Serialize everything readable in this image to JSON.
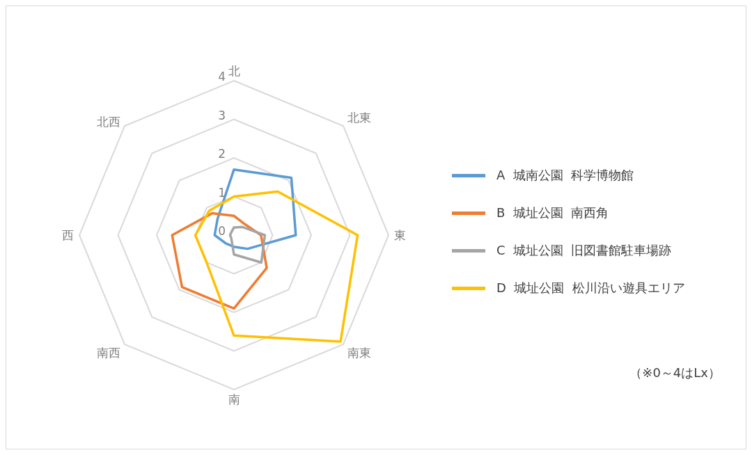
{
  "chart_data": {
    "type": "radar",
    "categories": [
      "北",
      "北東",
      "東",
      "南東",
      "南",
      "南西",
      "西",
      "北西"
    ],
    "series": [
      {
        "name": "A  城南公園  科学博物館",
        "color": "#5b9bd5",
        "values": [
          1.7,
          2.1,
          1.6,
          0.5,
          0.3,
          0.3,
          0.5,
          0.6
        ]
      },
      {
        "name": "B  城址公園  南西角",
        "color": "#ed7d31",
        "values": [
          0.5,
          0.4,
          0.7,
          1.2,
          1.9,
          1.9,
          1.6,
          0.8
        ]
      },
      {
        "name": "C  城址公園  旧図書館駐車場跡",
        "color": "#a5a5a5",
        "values": [
          0.2,
          0.3,
          0.8,
          1.0,
          0.5,
          0.1,
          0.1,
          0.1
        ]
      },
      {
        "name": "D  城址公園  松川沿い遊具エリア",
        "color": "#ffc000",
        "values": [
          1.0,
          1.6,
          3.2,
          3.9,
          2.6,
          1.0,
          1.0,
          0.9
        ]
      }
    ],
    "ylim": [
      0,
      4
    ],
    "yticks": [
      0,
      1,
      2,
      3,
      4
    ],
    "grid": true,
    "legend": "right",
    "marker": "none",
    "line_style": "solid",
    "annotations": [
      "（※0～4はLx）"
    ]
  }
}
